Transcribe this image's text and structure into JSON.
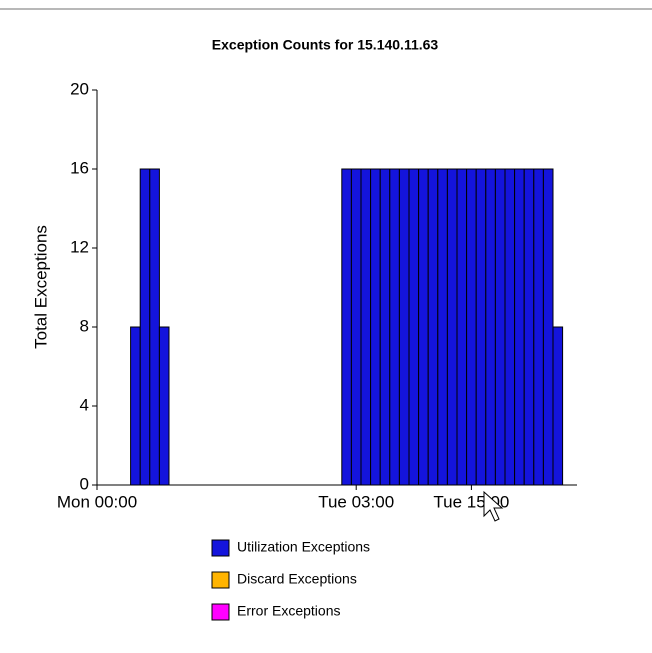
{
  "chart_data": {
    "type": "bar",
    "stacked": true,
    "title": "Exception Counts for 15.140.11.63",
    "y_label": "Total Exceptions",
    "x": [
      4,
      5,
      6,
      7,
      26,
      27,
      28,
      29,
      30,
      31,
      32,
      33,
      34,
      35,
      36,
      37,
      38,
      39,
      40,
      41,
      42,
      43,
      44,
      45,
      46,
      47,
      48
    ],
    "series": [
      {
        "name": "Utilization Exceptions",
        "color": "#1414dc",
        "values": [
          8,
          16,
          16,
          8,
          16,
          16,
          16,
          16,
          16,
          16,
          16,
          16,
          16,
          16,
          16,
          16,
          16,
          16,
          16,
          16,
          16,
          16,
          16,
          16,
          16,
          16,
          8
        ]
      },
      {
        "name": "Discard Exceptions",
        "color": "#ffb400",
        "values": [
          0,
          0,
          0,
          0,
          0,
          0,
          0,
          0,
          0,
          0,
          0,
          0,
          0,
          0,
          0,
          0,
          0,
          0,
          0,
          0,
          0,
          0,
          0,
          0,
          0,
          0,
          0
        ]
      },
      {
        "name": "Error Exceptions",
        "color": "#ff00ff",
        "values": [
          0,
          0,
          0,
          0,
          0,
          0,
          0,
          0,
          0,
          0,
          0,
          0,
          0,
          0,
          0,
          0,
          0,
          0,
          0,
          0,
          0,
          0,
          0,
          0,
          0,
          0,
          0
        ]
      }
    ],
    "xlim": [
      0,
      50
    ],
    "xticks": [
      {
        "value": 0,
        "label": "Mon 00:00"
      },
      {
        "value": 27,
        "label": "Tue 03:00"
      },
      {
        "value": 39,
        "label": "Tue 15:00"
      }
    ],
    "ylim": [
      0,
      20
    ],
    "yticks": [
      0,
      4,
      8,
      12,
      16,
      20
    ],
    "grid": false
  }
}
